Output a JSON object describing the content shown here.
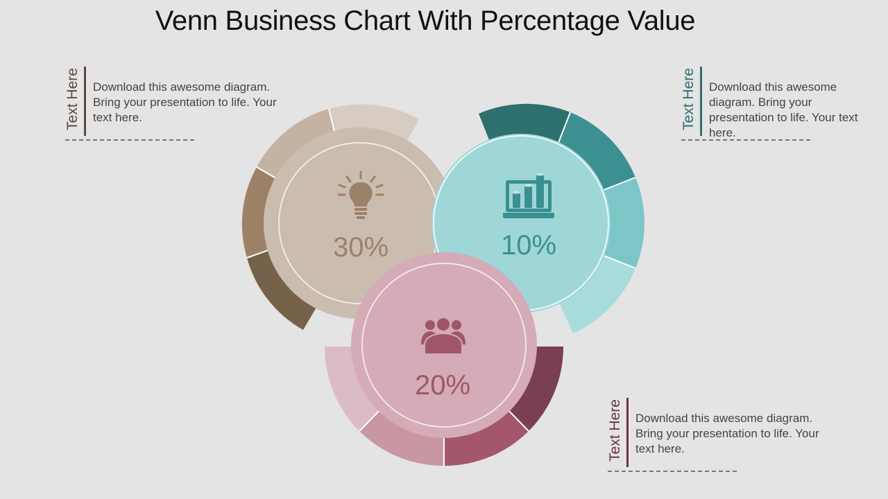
{
  "title": "Venn Business Chart With Percentage Value",
  "circles": [
    {
      "id": "left",
      "percent": "30%",
      "icon": "lightbulb-icon",
      "fill": "#cbbcb0",
      "text_color": "#9c8169",
      "ring_colors": [
        "#d6ccc2",
        "#c4b3a3",
        "#9d8166",
        "#76624a"
      ]
    },
    {
      "id": "right",
      "percent": "10%",
      "icon": "laptop-chart-icon",
      "fill": "#9fd6d8",
      "text_color": "#3a8f91",
      "ring_colors": [
        "#2e6f70",
        "#3d9092",
        "#7cc6c8",
        "#a8dcdc"
      ]
    },
    {
      "id": "bottom",
      "percent": "20%",
      "icon": "team-icon",
      "fill": "#d4abb6",
      "text_color": "#a0556b",
      "ring_colors": [
        "#dbbcc4",
        "#c996a4",
        "#a3566c",
        "#7b3f52"
      ]
    }
  ],
  "callouts": [
    {
      "heading": "Text Here",
      "body": "Download this awesome diagram. Bring your presentation to life. Your text here.",
      "color": "#5a4a3c"
    },
    {
      "heading": "Text Here",
      "body": "Download this awesome diagram. Bring your presentation to life. Your text here.",
      "color": "#2e6f70"
    },
    {
      "heading": "Text Here",
      "body": "Download this awesome diagram. Bring your presentation to life. Your text here.",
      "color": "#6b3346"
    }
  ]
}
